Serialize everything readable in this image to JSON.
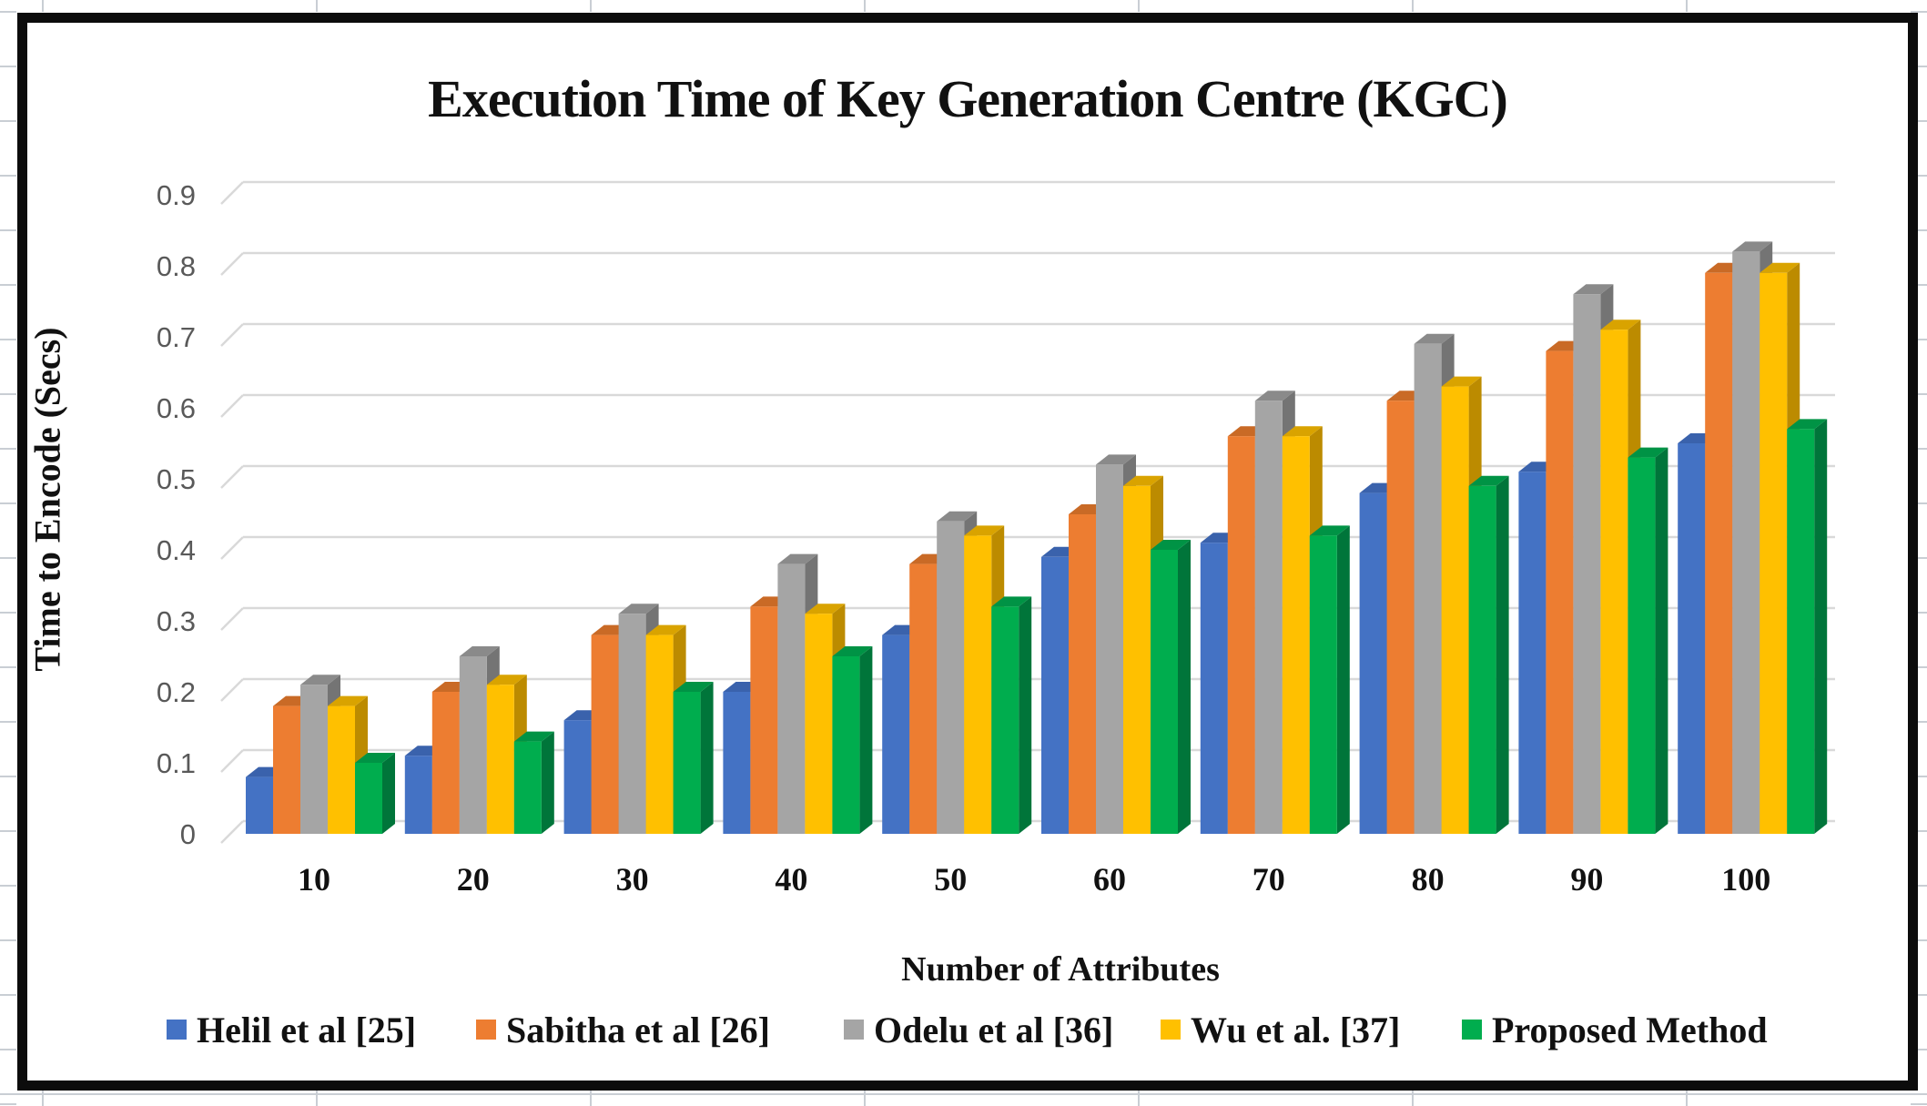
{
  "window": {
    "kind": "excel-3d-clustered-column-chart-screenshot"
  },
  "chart_data": {
    "type": "bar",
    "style": "3d-clustered-column",
    "title": "Execution Time of Key Generation Centre (KGC)",
    "xlabel": "Number of Attributes",
    "ylabel": "Time to Encode (Secs)",
    "categories": [
      "10",
      "20",
      "30",
      "40",
      "50",
      "60",
      "70",
      "80",
      "90",
      "100"
    ],
    "series": [
      {
        "name": "Helil et al [25]",
        "color": "#4472C4",
        "color_side": "#2E5596",
        "color_top": "#3A62AC",
        "values": [
          0.08,
          0.11,
          0.16,
          0.2,
          0.28,
          0.39,
          0.41,
          0.48,
          0.51,
          0.55
        ]
      },
      {
        "name": "Sabitha et al [26]",
        "color": "#ED7D31",
        "color_side": "#AE5A21",
        "color_top": "#C96A26",
        "values": [
          0.18,
          0.2,
          0.28,
          0.32,
          0.38,
          0.45,
          0.56,
          0.61,
          0.68,
          0.79
        ]
      },
      {
        "name": "Odelu et al [36]",
        "color": "#A5A5A5",
        "color_side": "#747474",
        "color_top": "#8A8A8A",
        "values": [
          0.21,
          0.25,
          0.31,
          0.38,
          0.44,
          0.52,
          0.61,
          0.69,
          0.76,
          0.82
        ]
      },
      {
        "name": "Wu et al. [37]",
        "color": "#FFC000",
        "color_side": "#BC8B00",
        "color_top": "#D9A300",
        "values": [
          0.18,
          0.21,
          0.28,
          0.31,
          0.42,
          0.49,
          0.56,
          0.63,
          0.71,
          0.79
        ]
      },
      {
        "name": "Proposed Method",
        "color": "#00AD4E",
        "color_side": "#00753A",
        "color_top": "#009345",
        "values": [
          0.1,
          0.13,
          0.2,
          0.25,
          0.32,
          0.4,
          0.42,
          0.49,
          0.53,
          0.57
        ]
      }
    ],
    "ylim": [
      0,
      0.9
    ],
    "ytick_step": 0.1,
    "ytick_labels": [
      "0",
      "0.1",
      "0.2",
      "0.3",
      "0.4",
      "0.5",
      "0.6",
      "0.7",
      "0.8",
      "0.9"
    ],
    "grid": true,
    "gridline_color": "#D9D9D9",
    "tick_text_color": "#595959",
    "frame_color": "#0c0c0c",
    "legend_position": "bottom"
  }
}
